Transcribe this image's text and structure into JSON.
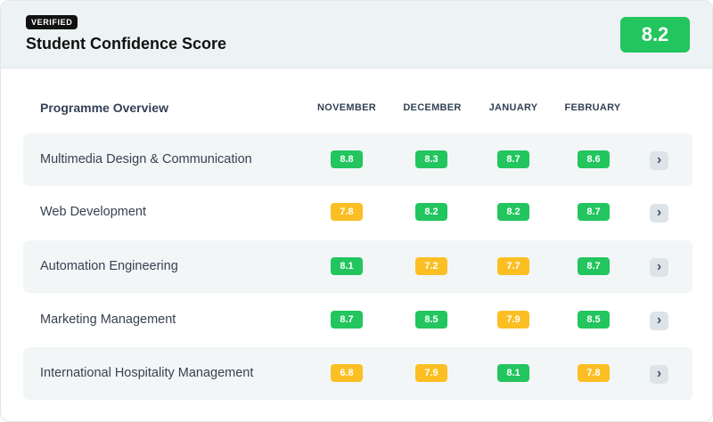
{
  "header": {
    "badge": "VERIFIED",
    "title": "Student Confidence Score",
    "score": "8.2"
  },
  "table": {
    "label": "Programme Overview",
    "columns": [
      "NOVEMBER",
      "DECEMBER",
      "JANUARY",
      "FEBRUARY"
    ],
    "rows": [
      {
        "name": "Multimedia Design & Communication",
        "scores": [
          "8.8",
          "8.3",
          "8.7",
          "8.6"
        ],
        "status": [
          "green",
          "green",
          "green",
          "green"
        ]
      },
      {
        "name": "Web Development",
        "scores": [
          "7.8",
          "8.2",
          "8.2",
          "8.7"
        ],
        "status": [
          "amber",
          "green",
          "green",
          "green"
        ]
      },
      {
        "name": "Automation Engineering",
        "scores": [
          "8.1",
          "7.2",
          "7.7",
          "8.7"
        ],
        "status": [
          "green",
          "amber",
          "amber",
          "green"
        ]
      },
      {
        "name": "Marketing Management",
        "scores": [
          "8.7",
          "8.5",
          "7.9",
          "8.5"
        ],
        "status": [
          "green",
          "green",
          "amber",
          "green"
        ]
      },
      {
        "name": "International Hospitality Management",
        "scores": [
          "6.8",
          "7.9",
          "8.1",
          "7.8"
        ],
        "status": [
          "amber",
          "amber",
          "green",
          "amber"
        ]
      }
    ]
  },
  "colors": {
    "green": "#22c55e",
    "amber": "#fbbf24",
    "header_bg": "#edf2f4"
  },
  "icons": {
    "row_action": "chevron-right-icon"
  }
}
